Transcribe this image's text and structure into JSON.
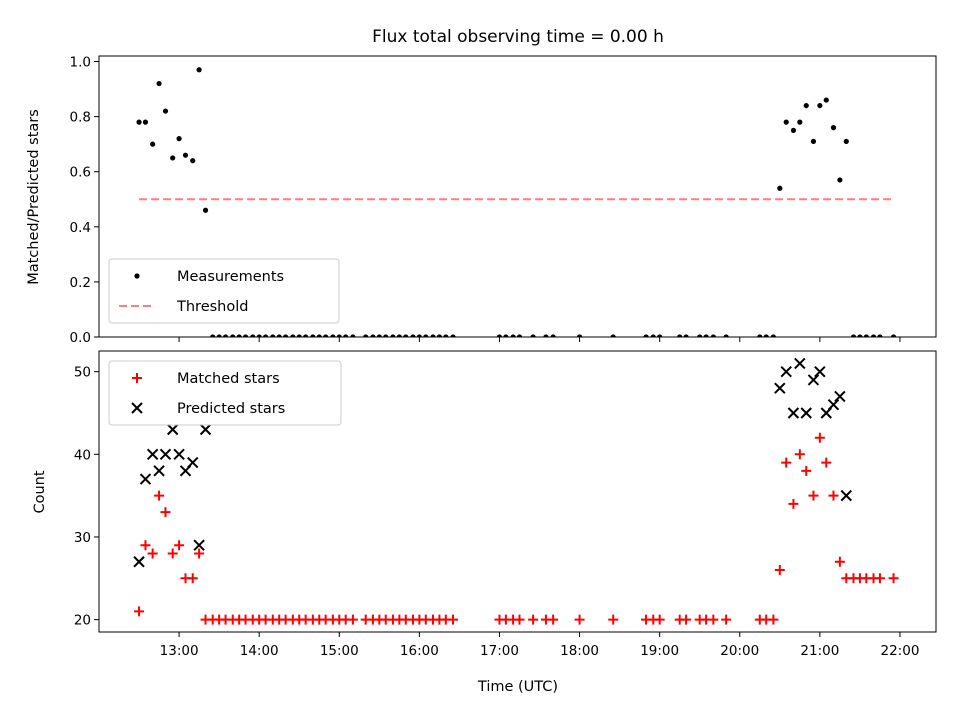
{
  "chart_data": {
    "title": "Flux total observing time = 0.00 h",
    "xlabel": "Time (UTC)",
    "x_unit": "hours UTC",
    "xlim": [
      12.0,
      22.45
    ],
    "x_ticks": [
      13,
      14,
      15,
      16,
      17,
      18,
      19,
      20,
      21,
      22
    ],
    "x_tick_labels": [
      "13:00",
      "14:00",
      "15:00",
      "16:00",
      "17:00",
      "18:00",
      "19:00",
      "20:00",
      "21:00",
      "22:00"
    ],
    "threshold_range": [
      12.5,
      21.9
    ],
    "panels": [
      {
        "type": "scatter",
        "ylabel": "Matched/Predicted stars",
        "ylim": [
          0,
          1.02
        ],
        "y_ticks": [
          0.0,
          0.2,
          0.4,
          0.6,
          0.8,
          1.0
        ],
        "y_tick_labels": [
          "0.0",
          "0.2",
          "0.4",
          "0.6",
          "0.8",
          "1.0"
        ],
        "legend_position": "lower-left",
        "series": [
          {
            "name": "Measurements",
            "color": "#000000",
            "marker": "dot",
            "points": [
              [
                12.5,
                0.78
              ],
              [
                12.58,
                0.78
              ],
              [
                12.67,
                0.7
              ],
              [
                12.75,
                0.92
              ],
              [
                12.83,
                0.82
              ],
              [
                12.92,
                0.65
              ],
              [
                13.0,
                0.72
              ],
              [
                13.08,
                0.66
              ],
              [
                13.17,
                0.64
              ],
              [
                13.25,
                0.97
              ],
              [
                13.33,
                0.46
              ],
              [
                13.42,
                0
              ],
              [
                13.5,
                0
              ],
              [
                13.58,
                0
              ],
              [
                13.67,
                0
              ],
              [
                13.75,
                0
              ],
              [
                13.83,
                0
              ],
              [
                13.92,
                0
              ],
              [
                14.0,
                0
              ],
              [
                14.08,
                0
              ],
              [
                14.17,
                0
              ],
              [
                14.25,
                0
              ],
              [
                14.33,
                0
              ],
              [
                14.42,
                0
              ],
              [
                14.5,
                0
              ],
              [
                14.58,
                0
              ],
              [
                14.67,
                0
              ],
              [
                14.75,
                0
              ],
              [
                14.83,
                0
              ],
              [
                14.92,
                0
              ],
              [
                15.0,
                0
              ],
              [
                15.08,
                0
              ],
              [
                15.17,
                0
              ],
              [
                15.33,
                0
              ],
              [
                15.42,
                0
              ],
              [
                15.5,
                0
              ],
              [
                15.58,
                0
              ],
              [
                15.67,
                0
              ],
              [
                15.75,
                0
              ],
              [
                15.83,
                0
              ],
              [
                15.92,
                0
              ],
              [
                16.0,
                0
              ],
              [
                16.08,
                0
              ],
              [
                16.17,
                0
              ],
              [
                16.25,
                0
              ],
              [
                16.33,
                0
              ],
              [
                16.42,
                0
              ],
              [
                17.0,
                0
              ],
              [
                17.08,
                0
              ],
              [
                17.17,
                0
              ],
              [
                17.25,
                0
              ],
              [
                17.42,
                0
              ],
              [
                17.58,
                0
              ],
              [
                17.67,
                0
              ],
              [
                18.0,
                0
              ],
              [
                18.42,
                0
              ],
              [
                18.83,
                0
              ],
              [
                18.92,
                0
              ],
              [
                19.0,
                0
              ],
              [
                19.25,
                0
              ],
              [
                19.33,
                0
              ],
              [
                19.5,
                0
              ],
              [
                19.58,
                0
              ],
              [
                19.67,
                0
              ],
              [
                19.83,
                0
              ],
              [
                20.25,
                0
              ],
              [
                20.33,
                0
              ],
              [
                20.42,
                0
              ],
              [
                20.5,
                0.54
              ],
              [
                20.58,
                0.78
              ],
              [
                20.67,
                0.75
              ],
              [
                20.75,
                0.78
              ],
              [
                20.83,
                0.84
              ],
              [
                20.92,
                0.71
              ],
              [
                21.0,
                0.84
              ],
              [
                21.08,
                0.86
              ],
              [
                21.17,
                0.76
              ],
              [
                21.25,
                0.57
              ],
              [
                21.33,
                0.71
              ],
              [
                21.42,
                0
              ],
              [
                21.5,
                0
              ],
              [
                21.58,
                0
              ],
              [
                21.67,
                0
              ],
              [
                21.75,
                0
              ],
              [
                21.92,
                0
              ]
            ]
          },
          {
            "name": "Threshold",
            "color": "#ff7f7f",
            "style": "dashed",
            "value": 0.5
          }
        ]
      },
      {
        "type": "scatter",
        "ylabel": "Count",
        "ylim": [
          18.5,
          52.5
        ],
        "y_ticks": [
          20,
          30,
          40,
          50
        ],
        "y_tick_labels": [
          "20",
          "30",
          "40",
          "50"
        ],
        "legend_position": "top-left",
        "series": [
          {
            "name": "Matched stars",
            "color": "#ff0000",
            "marker": "plus",
            "points": [
              [
                12.5,
                21
              ],
              [
                12.58,
                29
              ],
              [
                12.67,
                28
              ],
              [
                12.75,
                35
              ],
              [
                12.83,
                33
              ],
              [
                12.92,
                28
              ],
              [
                13.0,
                29
              ],
              [
                13.08,
                25
              ],
              [
                13.17,
                25
              ],
              [
                13.25,
                28
              ],
              [
                13.33,
                20
              ],
              [
                13.42,
                20
              ],
              [
                13.5,
                20
              ],
              [
                13.58,
                20
              ],
              [
                13.67,
                20
              ],
              [
                13.75,
                20
              ],
              [
                13.83,
                20
              ],
              [
                13.92,
                20
              ],
              [
                14.0,
                20
              ],
              [
                14.08,
                20
              ],
              [
                14.17,
                20
              ],
              [
                14.25,
                20
              ],
              [
                14.33,
                20
              ],
              [
                14.42,
                20
              ],
              [
                14.5,
                20
              ],
              [
                14.58,
                20
              ],
              [
                14.67,
                20
              ],
              [
                14.75,
                20
              ],
              [
                14.83,
                20
              ],
              [
                14.92,
                20
              ],
              [
                15.0,
                20
              ],
              [
                15.08,
                20
              ],
              [
                15.17,
                20
              ],
              [
                15.33,
                20
              ],
              [
                15.42,
                20
              ],
              [
                15.5,
                20
              ],
              [
                15.58,
                20
              ],
              [
                15.67,
                20
              ],
              [
                15.75,
                20
              ],
              [
                15.83,
                20
              ],
              [
                15.92,
                20
              ],
              [
                16.0,
                20
              ],
              [
                16.08,
                20
              ],
              [
                16.17,
                20
              ],
              [
                16.25,
                20
              ],
              [
                16.33,
                20
              ],
              [
                16.42,
                20
              ],
              [
                17.0,
                20
              ],
              [
                17.08,
                20
              ],
              [
                17.17,
                20
              ],
              [
                17.25,
                20
              ],
              [
                17.42,
                20
              ],
              [
                17.58,
                20
              ],
              [
                17.67,
                20
              ],
              [
                18.0,
                20
              ],
              [
                18.42,
                20
              ],
              [
                18.83,
                20
              ],
              [
                18.92,
                20
              ],
              [
                19.0,
                20
              ],
              [
                19.25,
                20
              ],
              [
                19.33,
                20
              ],
              [
                19.5,
                20
              ],
              [
                19.58,
                20
              ],
              [
                19.67,
                20
              ],
              [
                19.83,
                20
              ],
              [
                20.25,
                20
              ],
              [
                20.33,
                20
              ],
              [
                20.42,
                20
              ],
              [
                20.5,
                26
              ],
              [
                20.58,
                39
              ],
              [
                20.67,
                34
              ],
              [
                20.75,
                40
              ],
              [
                20.83,
                38
              ],
              [
                20.92,
                35
              ],
              [
                21.0,
                42
              ],
              [
                21.08,
                39
              ],
              [
                21.17,
                35
              ],
              [
                21.25,
                27
              ],
              [
                21.33,
                25
              ],
              [
                21.42,
                25
              ],
              [
                21.5,
                25
              ],
              [
                21.58,
                25
              ],
              [
                21.67,
                25
              ],
              [
                21.75,
                25
              ],
              [
                21.92,
                25
              ]
            ]
          },
          {
            "name": "Predicted stars",
            "color": "#000000",
            "marker": "x",
            "points": [
              [
                12.5,
                27
              ],
              [
                12.58,
                37
              ],
              [
                12.67,
                40
              ],
              [
                12.75,
                38
              ],
              [
                12.83,
                40
              ],
              [
                12.92,
                43
              ],
              [
                13.0,
                40
              ],
              [
                13.08,
                38
              ],
              [
                13.17,
                39
              ],
              [
                13.25,
                29
              ],
              [
                13.33,
                43
              ],
              [
                20.5,
                48
              ],
              [
                20.58,
                50
              ],
              [
                20.67,
                45
              ],
              [
                20.75,
                51
              ],
              [
                20.83,
                45
              ],
              [
                20.92,
                49
              ],
              [
                21.0,
                50
              ],
              [
                21.08,
                45
              ],
              [
                21.17,
                46
              ],
              [
                21.25,
                47
              ],
              [
                21.33,
                35
              ]
            ]
          }
        ]
      }
    ]
  }
}
